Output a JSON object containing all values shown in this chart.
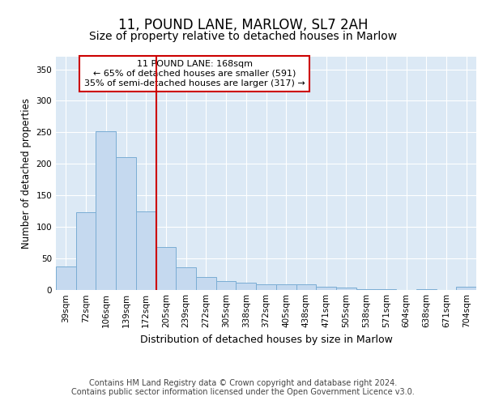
{
  "title_line1": "11, POUND LANE, MARLOW, SL7 2AH",
  "title_line2": "Size of property relative to detached houses in Marlow",
  "xlabel": "Distribution of detached houses by size in Marlow",
  "ylabel": "Number of detached properties",
  "categories": [
    "39sqm",
    "72sqm",
    "106sqm",
    "139sqm",
    "172sqm",
    "205sqm",
    "239sqm",
    "272sqm",
    "305sqm",
    "338sqm",
    "372sqm",
    "405sqm",
    "438sqm",
    "471sqm",
    "505sqm",
    "538sqm",
    "571sqm",
    "604sqm",
    "638sqm",
    "671sqm",
    "704sqm"
  ],
  "values": [
    37,
    123,
    252,
    211,
    124,
    67,
    35,
    20,
    14,
    11,
    9,
    9,
    8,
    5,
    3,
    1,
    1,
    0,
    1,
    0,
    5
  ],
  "bar_color": "#c5d9ef",
  "bar_edge_color": "#7aadd4",
  "vline_color": "#cc0000",
  "vline_x": 4.5,
  "annotation_line1": "11 POUND LANE: 168sqm",
  "annotation_line2": "← 65% of detached houses are smaller (591)",
  "annotation_line3": "35% of semi-detached houses are larger (317) →",
  "annotation_box_color": "#cc0000",
  "ylim": [
    0,
    370
  ],
  "yticks": [
    0,
    50,
    100,
    150,
    200,
    250,
    300,
    350
  ],
  "bg_color": "#ffffff",
  "plot_bg_color": "#dce9f5",
  "grid_color": "#ffffff",
  "footer_line1": "Contains HM Land Registry data © Crown copyright and database right 2024.",
  "footer_line2": "Contains public sector information licensed under the Open Government Licence v3.0.",
  "title_fontsize": 12,
  "subtitle_fontsize": 10,
  "axis_label_fontsize": 9,
  "ylabel_fontsize": 8.5,
  "tick_fontsize": 7.5,
  "annotation_fontsize": 8,
  "footer_fontsize": 7
}
